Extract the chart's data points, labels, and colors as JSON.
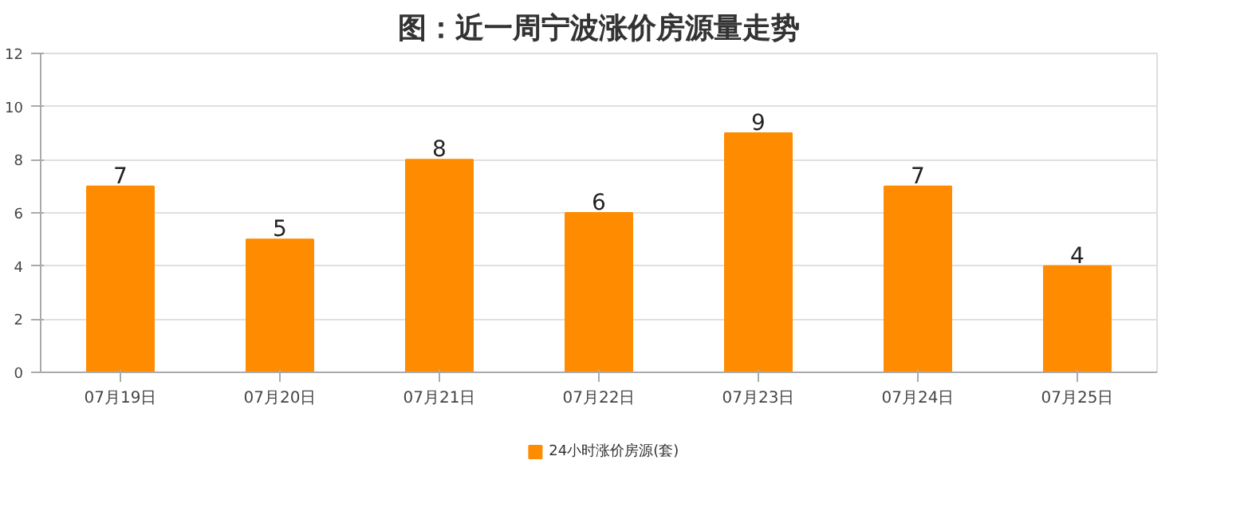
{
  "chart_data": {
    "type": "bar",
    "title": "图：近一周宁波涨价房源量走势",
    "categories": [
      "07月19日",
      "07月20日",
      "07月21日",
      "07月22日",
      "07月23日",
      "07月24日",
      "07月25日"
    ],
    "series": [
      {
        "name": "24小时涨价房源(套)",
        "color": "#ff8c00",
        "values": [
          7,
          5,
          8,
          6,
          9,
          7,
          4
        ]
      }
    ],
    "ylim": [
      0,
      12
    ],
    "yticks": [
      0,
      2,
      4,
      6,
      8,
      10,
      12
    ],
    "grid": "y",
    "legend": "bottom",
    "data_labels": true
  }
}
